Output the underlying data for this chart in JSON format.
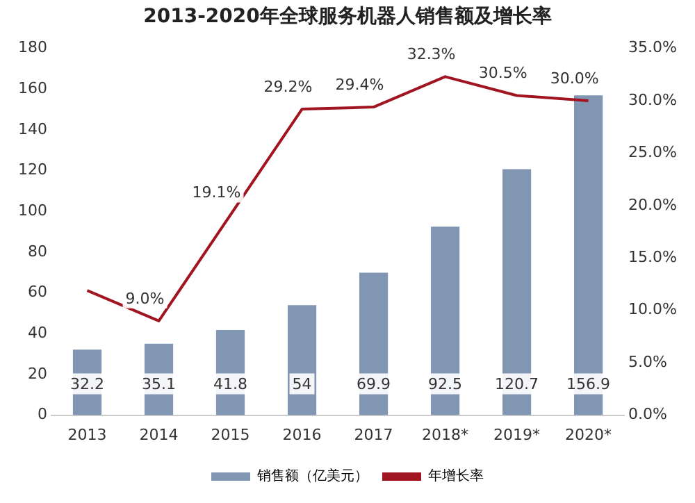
{
  "chart_data": {
    "type": "bar",
    "title": "2013-2020年全球服务机器人销售额及增长率",
    "categories": [
      "2013",
      "2014",
      "2015",
      "2016",
      "2017",
      "2018*",
      "2019*",
      "2020*"
    ],
    "series": [
      {
        "name": "销售额（亿美元）",
        "color": "#8096b2",
        "values": [
          32.2,
          35.1,
          41.8,
          54,
          69.9,
          92.5,
          120.7,
          156.9
        ],
        "value_labels": [
          "32.2",
          "35.1",
          "41.8",
          "54",
          "69.9",
          "92.5",
          "120.7",
          "156.9"
        ]
      },
      {
        "name": "年增长率",
        "type": "line",
        "axis": "y2",
        "color": "#a01520",
        "values": [
          11.9,
          9.0,
          19.1,
          29.2,
          29.4,
          32.3,
          30.5,
          30.0
        ],
        "value_labels": [
          null,
          "9.0%",
          "19.1%",
          "29.2%",
          "29.4%",
          "32.3%",
          "30.5%",
          "30.0%"
        ]
      }
    ],
    "ylim": [
      0,
      180
    ],
    "yticks": [
      0,
      20,
      40,
      60,
      80,
      100,
      120,
      140,
      160,
      180
    ],
    "y2lim": [
      0,
      35
    ],
    "y2ticks": [
      {
        "value": 0,
        "label": "0.0%"
      },
      {
        "value": 5,
        "label": "5.0%"
      },
      {
        "value": 10,
        "label": "10.0%"
      },
      {
        "value": 15,
        "label": "15.0%"
      },
      {
        "value": 20,
        "label": "20.0%"
      },
      {
        "value": 25,
        "label": "25.0%"
      },
      {
        "value": 30,
        "label": "30.0%"
      },
      {
        "value": 35,
        "label": "35.0%"
      }
    ],
    "grid": false,
    "legend": "bottom",
    "marker": "none"
  }
}
